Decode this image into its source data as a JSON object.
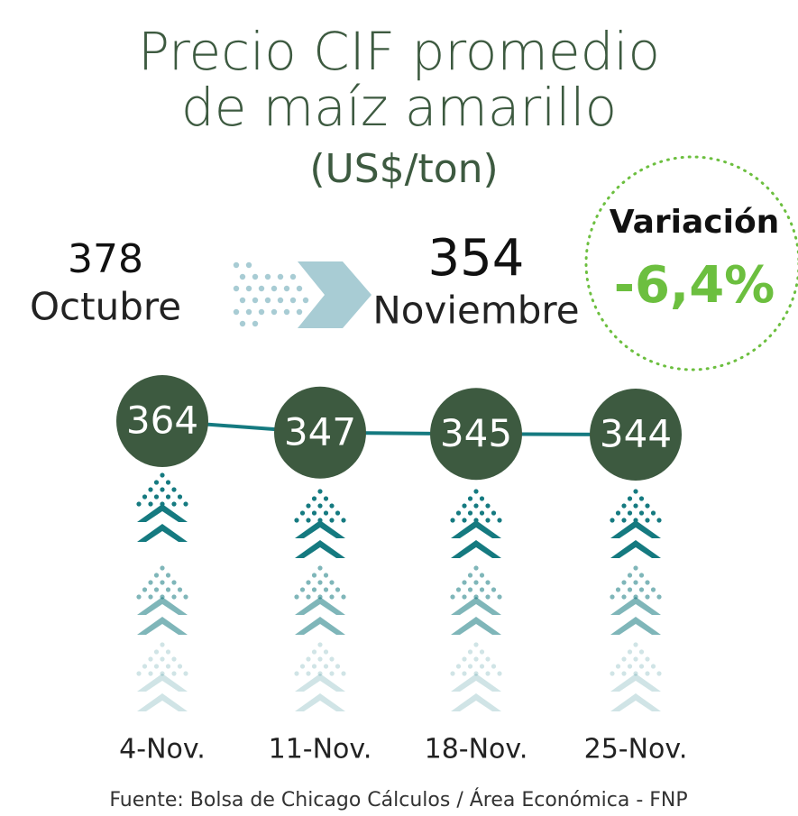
{
  "chart_data": {
    "type": "line",
    "title": "Precio CIF promedio de maíz amarillo",
    "subtitle": "(US$/ton)",
    "comparison": {
      "from": {
        "value": 378,
        "label": "Octubre"
      },
      "to": {
        "value": 354,
        "label": "Noviembre"
      },
      "variation": {
        "label": "Variación",
        "value": -6.4,
        "value_label": "-6,4%"
      }
    },
    "categories": [
      "4-Nov.",
      "11-Nov.",
      "18-Nov.",
      "25-Nov."
    ],
    "values": [
      364,
      347,
      345,
      344
    ],
    "color": "#157a80",
    "marker_color": "#3d5a40",
    "source": "Fuente: Bolsa de Chicago Cálculos / Área Económica - FNP"
  }
}
